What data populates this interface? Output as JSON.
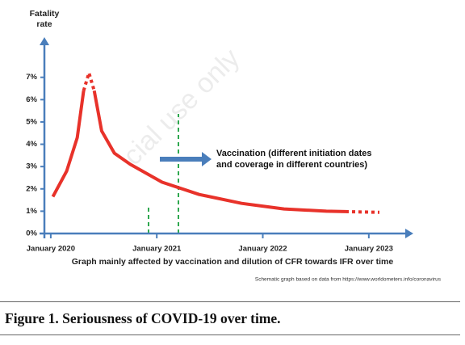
{
  "chart_data": {
    "type": "line",
    "y_label_lines": [
      "Fatality",
      "rate"
    ],
    "x_label": "Graph mainly affected by vaccination and dilution of CFR  towards IFR over time",
    "source_note": "Schematic graph based on data from https://www.worldometers.info/coronavirus",
    "annotation_lines": [
      "Vaccination (different initiation dates",
      "and coverage in different countries)"
    ],
    "x": [
      2020.02,
      2020.15,
      2020.25,
      2020.31,
      2020.36,
      2020.41,
      2020.48,
      2020.6,
      2020.75,
      2021.05,
      2021.4,
      2021.8,
      2022.2,
      2022.6,
      2022.78,
      2023.1
    ],
    "series": [
      {
        "color": "#e8322a",
        "dash": "none",
        "values": [
          1.65,
          2.8,
          4.3,
          6.4,
          null,
          6.4,
          4.6,
          3.6,
          3.1,
          2.3,
          1.75,
          1.35,
          1.1,
          1.0,
          0.98,
          null
        ]
      },
      {
        "color": "#e8322a",
        "dash": "4 4",
        "values": [
          null,
          null,
          null,
          6.4,
          7.2,
          6.4,
          null,
          null,
          null,
          null,
          null,
          null,
          null,
          null,
          0.98,
          0.95
        ]
      }
    ],
    "xlim": [
      2019.94,
      2023.42
    ],
    "xticks": [
      {
        "value": 2020,
        "label": "January 2020"
      },
      {
        "value": 2021,
        "label": "January 2021"
      },
      {
        "value": 2022,
        "label": "January 2022"
      },
      {
        "value": 2023,
        "label": "January 2023"
      }
    ],
    "ylim": [
      0,
      8.8
    ],
    "yticks": [
      {
        "value": 0,
        "label": "0%"
      },
      {
        "value": 1,
        "label": "1%"
      },
      {
        "value": 2,
        "label": "2%"
      },
      {
        "value": 3,
        "label": "3%"
      },
      {
        "value": 4,
        "label": "4%"
      },
      {
        "value": 5,
        "label": "5%"
      },
      {
        "value": 6,
        "label": "6%"
      },
      {
        "value": 7,
        "label": "7%"
      }
    ],
    "axis_color": "#4a7ebb"
  },
  "watermark": "cial use only",
  "figure_caption": "Figure 1. Seriousness of COVID-19 over time."
}
